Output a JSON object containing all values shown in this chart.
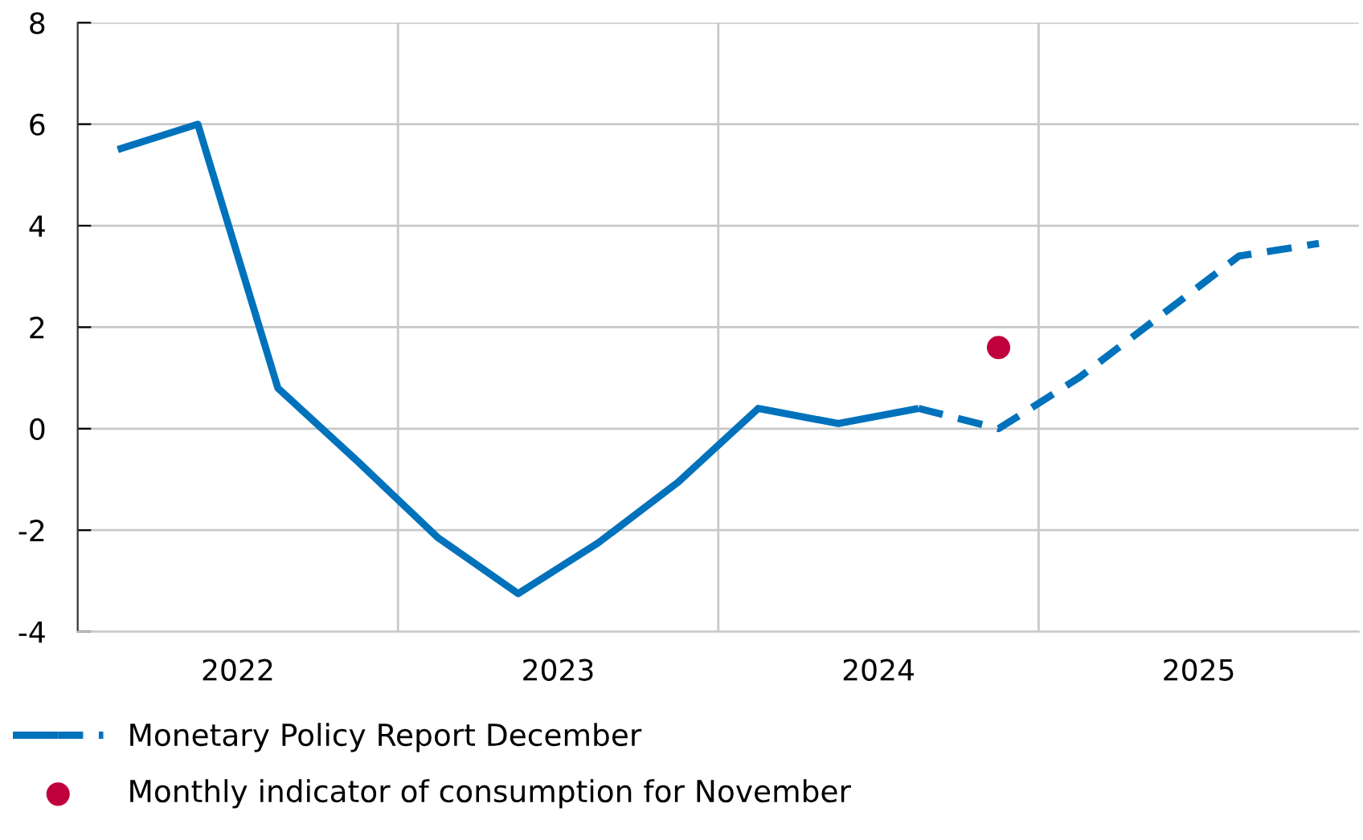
{
  "chart_data": {
    "type": "line",
    "series": [
      {
        "name": "Monetary Policy Report December",
        "color": "#0072bc",
        "line_style": "solid",
        "x": [
          2022.125,
          2022.375,
          2022.625,
          2022.875,
          2023.125,
          2023.375,
          2023.625,
          2023.875,
          2024.125,
          2024.375,
          2024.625
        ],
        "values": [
          5.5,
          6.0,
          0.8,
          -0.65,
          -2.15,
          -3.25,
          -2.25,
          -1.05,
          0.4,
          0.1,
          0.4
        ]
      },
      {
        "color": "#0072bc",
        "line_style": "dashed",
        "x": [
          2024.625,
          2024.875,
          2025.125,
          2025.375,
          2025.625,
          2025.875
        ],
        "values": [
          0.4,
          0.0,
          1.0,
          2.2,
          3.4,
          3.65
        ]
      },
      {
        "name": "Monthly indicator of consumption for November",
        "type": "scatter",
        "color": "#c0003c",
        "x": [
          2024.875
        ],
        "values": [
          1.6
        ]
      }
    ],
    "xlim": [
      2022,
      2026
    ],
    "xticks": [
      {
        "value": 2023,
        "label": null
      },
      {
        "value": 2024,
        "label": null
      },
      {
        "value": 2025,
        "label": null
      },
      {
        "value": 2022.5,
        "label": "2022"
      },
      {
        "value": 2023.5,
        "label": "2023"
      },
      {
        "value": 2024.5,
        "label": "2024"
      },
      {
        "value": 2025.5,
        "label": "2025"
      }
    ],
    "ylim": [
      -4,
      8
    ],
    "yticks": [
      -4,
      -2,
      0,
      2,
      4,
      6,
      8
    ],
    "grid": true,
    "legend": "bottom left"
  }
}
